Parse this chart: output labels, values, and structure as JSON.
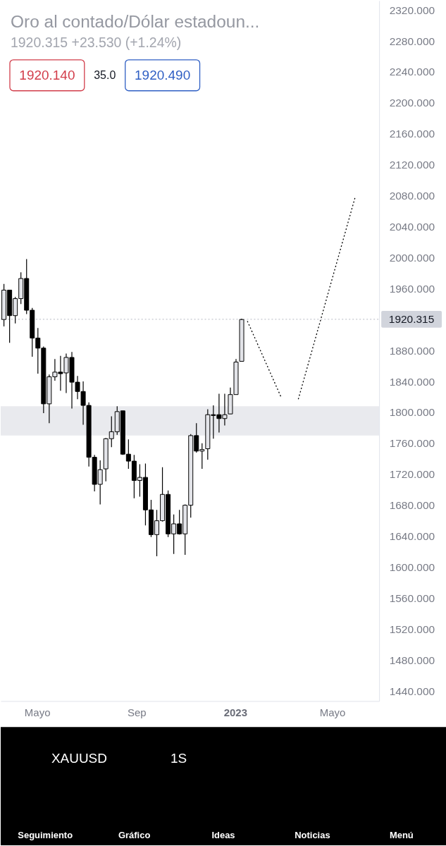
{
  "chart_data": [
    {
      "type": "candlestick",
      "title": "Oro al contado/Dólar estadoun...",
      "subtitle": "1920.315 +23.530 (+1.24%)",
      "annotations": [
        "1920.140",
        "35.0",
        "1920.490"
      ],
      "x": [
        "2022-03-21",
        "2022-03-28",
        "2022-04-04",
        "2022-04-11",
        "2022-04-18",
        "2022-04-25",
        "2022-05-02",
        "2022-05-09",
        "2022-05-16",
        "2022-05-23",
        "2022-05-30",
        "2022-06-06",
        "2022-06-13",
        "2022-06-20",
        "2022-06-27",
        "2022-07-04",
        "2022-07-11",
        "2022-07-18",
        "2022-07-25",
        "2022-08-01",
        "2022-08-08",
        "2022-08-15",
        "2022-08-22",
        "2022-08-29",
        "2022-09-05",
        "2022-09-12",
        "2022-09-19",
        "2022-09-26",
        "2022-10-03",
        "2022-10-10",
        "2022-10-17",
        "2022-10-24",
        "2022-10-31",
        "2022-11-07",
        "2022-11-14",
        "2022-11-21",
        "2022-11-28",
        "2022-12-05",
        "2022-12-12",
        "2022-12-19",
        "2022-12-26",
        "2023-01-02",
        "2023-01-09"
      ],
      "ohlc": [
        [
          1920,
          1966,
          1911,
          1958
        ],
        [
          1958,
          1958,
          1890,
          1925
        ],
        [
          1925,
          1949,
          1915,
          1947
        ],
        [
          1947,
          1981,
          1940,
          1973
        ],
        [
          1973,
          1998,
          1927,
          1932
        ],
        [
          1932,
          1935,
          1872,
          1896
        ],
        [
          1896,
          1909,
          1850,
          1883
        ],
        [
          1883,
          1885,
          1799,
          1811
        ],
        [
          1811,
          1849,
          1786,
          1846
        ],
        [
          1846,
          1869,
          1841,
          1852
        ],
        [
          1852,
          1873,
          1828,
          1850
        ],
        [
          1851,
          1876,
          1825,
          1871
        ],
        [
          1871,
          1878,
          1805,
          1839
        ],
        [
          1839,
          1847,
          1817,
          1827
        ],
        [
          1827,
          1840,
          1784,
          1809
        ],
        [
          1809,
          1813,
          1730,
          1742
        ],
        [
          1742,
          1745,
          1698,
          1707
        ],
        [
          1707,
          1738,
          1681,
          1726
        ],
        [
          1727,
          1767,
          1711,
          1766
        ],
        [
          1766,
          1795,
          1755,
          1775
        ],
        [
          1775,
          1808,
          1771,
          1801
        ],
        [
          1802,
          1802,
          1745,
          1746
        ],
        [
          1746,
          1765,
          1727,
          1737
        ],
        [
          1737,
          1745,
          1689,
          1712
        ],
        [
          1712,
          1733,
          1691,
          1716
        ],
        [
          1716,
          1734,
          1654,
          1674
        ],
        [
          1674,
          1687,
          1639,
          1642
        ],
        [
          1642,
          1674,
          1614,
          1660
        ],
        [
          1660,
          1729,
          1659,
          1694
        ],
        [
          1694,
          1699,
          1639,
          1643
        ],
        [
          1643,
          1668,
          1617,
          1656
        ],
        [
          1656,
          1674,
          1642,
          1643
        ],
        [
          1643,
          1681,
          1616,
          1680
        ],
        [
          1680,
          1772,
          1664,
          1770
        ],
        [
          1770,
          1786,
          1748,
          1750
        ],
        [
          1750,
          1760,
          1727,
          1752
        ],
        [
          1753,
          1804,
          1739,
          1797
        ],
        [
          1797,
          1809,
          1766,
          1796
        ],
        [
          1797,
          1824,
          1774,
          1792
        ],
        [
          1792,
          1824,
          1783,
          1797
        ],
        [
          1798,
          1832,
          1798,
          1823
        ],
        [
          1823,
          1869,
          1823,
          1865
        ],
        [
          1866,
          1921,
          1866,
          1920
        ]
      ],
      "colors": [
        "#e3e4e9",
        "#000000",
        "#e3e4e9",
        "#e3e4e9",
        "#000000",
        "#000000",
        "#000000",
        "#000000",
        "#e3e4e9",
        "#e3e4e9",
        "#000000",
        "#e3e4e9",
        "#000000",
        "#000000",
        "#000000",
        "#000000",
        "#000000",
        "#e3e4e9",
        "#e3e4e9",
        "#e3e4e9",
        "#e3e4e9",
        "#000000",
        "#000000",
        "#000000",
        "#e3e4e9",
        "#000000",
        "#000000",
        "#e3e4e9",
        "#e3e4e9",
        "#000000",
        "#e3e4e9",
        "#000000",
        "#e3e4e9",
        "#e3e4e9",
        "#000000",
        "#e3e4e9",
        "#e3e4e9",
        "#000000",
        "#000000",
        "#e3e4e9",
        "#e3e4e9",
        "#e3e4e9",
        "#e3e4e9"
      ],
      "series": [
        {
          "type": "line",
          "color": "#000000",
          "line_style": "dotted",
          "x": [
            "2023-01-16",
            "2023-02-27"
          ],
          "values": [
            1918,
            1819
          ]
        },
        {
          "type": "line",
          "color": "#000000",
          "line_style": "dotted",
          "x": [
            "2023-03-20",
            "2023-05-29"
          ],
          "values": [
            1817,
            2077
          ]
        }
      ],
      "xlim": [
        "2022-03-17",
        "2023-06-28"
      ],
      "xticks": [
        {
          "value": "2022-05-01",
          "label": "Mayo"
        },
        {
          "value": "2022-09-01",
          "label": "Sep"
        },
        {
          "value": "2023-01-01",
          "label": "2023"
        },
        {
          "value": "2023-05-01",
          "label": "Mayo"
        }
      ],
      "ylim": [
        1427,
        2332
      ],
      "yticks": [
        {
          "value": 2320,
          "label": "2320.000"
        },
        {
          "value": 2280,
          "label": "2280.000"
        },
        {
          "value": 2240,
          "label": "2240.000"
        },
        {
          "value": 2200,
          "label": "2200.000"
        },
        {
          "value": 2160,
          "label": "2160.000"
        },
        {
          "value": 2120,
          "label": "2120.000"
        },
        {
          "value": 2080,
          "label": "2080.000"
        },
        {
          "value": 2040,
          "label": "2040.000"
        },
        {
          "value": 2000,
          "label": "2000.000"
        },
        {
          "value": 1960,
          "label": "1960.000"
        },
        {
          "value": 1880,
          "label": "1880.000"
        },
        {
          "value": 1840,
          "label": "1840.000"
        },
        {
          "value": 1800,
          "label": "1800.000"
        },
        {
          "value": 1760,
          "label": "1760.000"
        },
        {
          "value": 1720,
          "label": "1720.000"
        },
        {
          "value": 1680,
          "label": "1680.000"
        },
        {
          "value": 1640,
          "label": "1640.000"
        },
        {
          "value": 1600,
          "label": "1600.000"
        },
        {
          "value": 1560,
          "label": "1560.000"
        },
        {
          "value": 1520,
          "label": "1520.000"
        },
        {
          "value": 1480,
          "label": "1480.000"
        },
        {
          "value": 1440,
          "label": "1440.000"
        }
      ],
      "ref_lines": [
        {
          "axis": "y",
          "value": 1920.315,
          "label": "1920.315",
          "color": "#c3c6ce",
          "line_style": "dotted"
        }
      ],
      "bands": [
        {
          "axis": "y",
          "from": 1770,
          "to": 1808,
          "color": "#e9eaee"
        }
      ]
    },
    {
      "type": "other",
      "annotations": [
        "XAUUSD",
        "1S",
        "Seguimiento",
        "Gráfico",
        "Ideas",
        "Noticias",
        "Menú"
      ]
    }
  ]
}
